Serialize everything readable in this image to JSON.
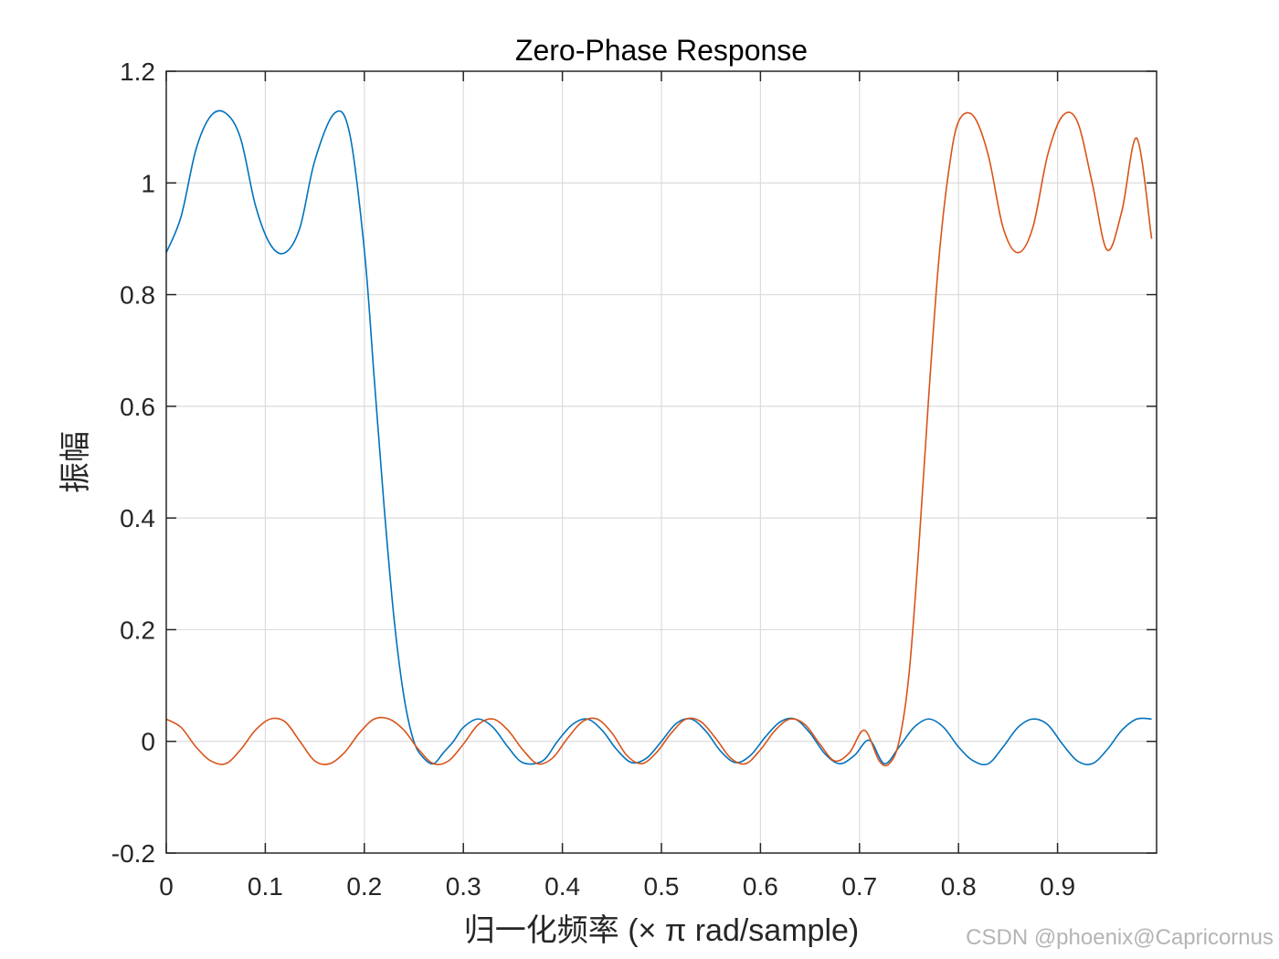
{
  "chart_data": {
    "type": "line",
    "title": "Zero-Phase Response",
    "xlabel": "归一化频率 (× π rad/sample)",
    "ylabel": "振幅",
    "xlim": [
      0,
      1
    ],
    "ylim": [
      -0.2,
      1.2
    ],
    "xticks": [
      0,
      0.1,
      0.2,
      0.3,
      0.4,
      0.5,
      0.6,
      0.7,
      0.8,
      0.9
    ],
    "xtick_labels": [
      "0",
      "0.1",
      "0.2",
      "0.3",
      "0.4",
      "0.5",
      "0.6",
      "0.7",
      "0.8",
      "0.9"
    ],
    "yticks": [
      -0.2,
      0,
      0.2,
      0.4,
      0.6,
      0.8,
      1,
      1.2
    ],
    "ytick_labels": [
      "-0.2",
      "0",
      "0.2",
      "0.4",
      "0.6",
      "0.8",
      "1",
      "1.2"
    ],
    "grid": true,
    "series": [
      {
        "color": "#0072BD",
        "x": [
          0,
          0.015,
          0.03,
          0.045,
          0.06,
          0.075,
          0.09,
          0.105,
          0.12,
          0.135,
          0.15,
          0.17,
          0.185,
          0.2,
          0.21,
          0.22,
          0.23,
          0.24,
          0.25,
          0.26,
          0.27,
          0.28,
          0.29,
          0.3,
          0.315,
          0.33,
          0.345,
          0.36,
          0.38,
          0.395,
          0.41,
          0.425,
          0.44,
          0.455,
          0.47,
          0.485,
          0.5,
          0.515,
          0.53,
          0.545,
          0.56,
          0.575,
          0.59,
          0.605,
          0.62,
          0.635,
          0.65,
          0.665,
          0.68,
          0.695,
          0.71,
          0.725,
          0.74,
          0.755,
          0.77,
          0.785,
          0.8,
          0.815,
          0.83,
          0.845,
          0.86,
          0.875,
          0.89,
          0.905,
          0.92,
          0.935,
          0.95,
          0.965,
          0.98,
          0.995
        ],
        "y": [
          0.875,
          0.94,
          1.06,
          1.12,
          1.125,
          1.08,
          0.96,
          0.89,
          0.875,
          0.92,
          1.04,
          1.125,
          1.09,
          0.88,
          0.65,
          0.42,
          0.22,
          0.08,
          0.0,
          -0.03,
          -0.04,
          -0.02,
          0.0,
          0.025,
          0.04,
          0.025,
          -0.01,
          -0.038,
          -0.035,
          0.0,
          0.03,
          0.04,
          0.02,
          -0.015,
          -0.038,
          -0.03,
          0.0,
          0.032,
          0.04,
          0.018,
          -0.018,
          -0.038,
          -0.025,
          0.008,
          0.035,
          0.04,
          0.015,
          -0.022,
          -0.04,
          -0.025,
          0.002,
          -0.04,
          -0.01,
          0.025,
          0.04,
          0.025,
          -0.01,
          -0.035,
          -0.04,
          -0.01,
          0.025,
          0.04,
          0.03,
          -0.005,
          -0.035,
          -0.04,
          -0.015,
          0.02,
          0.04,
          0.04
        ]
      },
      {
        "color": "#D95319",
        "x": [
          0,
          0.015,
          0.03,
          0.045,
          0.06,
          0.075,
          0.09,
          0.105,
          0.12,
          0.135,
          0.15,
          0.165,
          0.18,
          0.195,
          0.21,
          0.225,
          0.24,
          0.255,
          0.27,
          0.285,
          0.3,
          0.315,
          0.33,
          0.345,
          0.36,
          0.375,
          0.39,
          0.405,
          0.42,
          0.435,
          0.45,
          0.465,
          0.48,
          0.495,
          0.51,
          0.525,
          0.54,
          0.555,
          0.57,
          0.585,
          0.6,
          0.615,
          0.63,
          0.645,
          0.66,
          0.675,
          0.69,
          0.705,
          0.72,
          0.73,
          0.74,
          0.75,
          0.76,
          0.77,
          0.78,
          0.79,
          0.8,
          0.815,
          0.83,
          0.845,
          0.86,
          0.875,
          0.89,
          0.905,
          0.92,
          0.935,
          0.95,
          0.965,
          0.98,
          0.995
        ],
        "y": [
          0.04,
          0.025,
          -0.01,
          -0.035,
          -0.04,
          -0.015,
          0.02,
          0.04,
          0.035,
          0.0,
          -0.035,
          -0.04,
          -0.02,
          0.015,
          0.04,
          0.04,
          0.02,
          -0.015,
          -0.04,
          -0.035,
          -0.005,
          0.03,
          0.04,
          0.02,
          -0.015,
          -0.04,
          -0.03,
          0.005,
          0.035,
          0.04,
          0.015,
          -0.025,
          -0.04,
          -0.02,
          0.015,
          0.04,
          0.035,
          0.005,
          -0.03,
          -0.04,
          -0.015,
          0.02,
          0.04,
          0.03,
          -0.005,
          -0.035,
          -0.02,
          0.02,
          -0.035,
          -0.04,
          0.0,
          0.12,
          0.35,
          0.62,
          0.86,
          1.02,
          1.11,
          1.12,
          1.05,
          0.92,
          0.875,
          0.92,
          1.05,
          1.12,
          1.11,
          1.0,
          0.88,
          0.95,
          1.08,
          0.9
        ]
      }
    ]
  },
  "watermark": "CSDN @phoenix@Capricornus"
}
